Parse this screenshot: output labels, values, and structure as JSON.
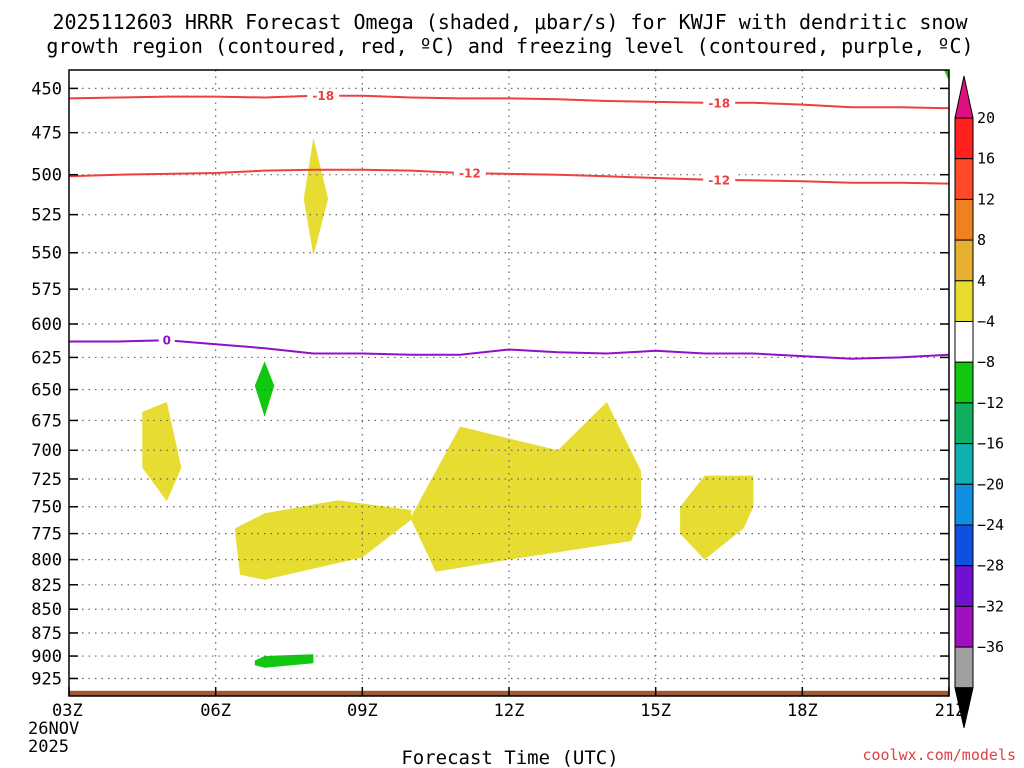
{
  "chart_data": {
    "type": "contour",
    "title_line1": "2025112603 HRRR Forecast Omega (shaded, μbar/s) for KWJF with dendritic snow",
    "title_line2": "growth region (contoured, red, ºC) and freezing level (contoured, purple, ºC)",
    "xlabel": "Forecast Time (UTC)",
    "x_ticks": [
      "03Z",
      "06Z",
      "09Z",
      "12Z",
      "15Z",
      "18Z",
      "21Z"
    ],
    "x_ticks_hours": [
      3,
      6,
      9,
      12,
      15,
      18,
      21
    ],
    "x_date_line1": "26NOV",
    "x_date_line2": "2025",
    "xlim": [
      3,
      21
    ],
    "y_ticks": [
      450,
      475,
      500,
      525,
      550,
      575,
      600,
      625,
      650,
      675,
      700,
      725,
      750,
      775,
      800,
      825,
      850,
      875,
      900,
      925
    ],
    "y_tick_labels": [
      "450",
      "475",
      "500",
      "525",
      "550",
      "575",
      "600",
      "625",
      "650",
      "675",
      "700",
      "725",
      "750",
      "775",
      "800",
      "825",
      "850",
      "875",
      "900",
      "925"
    ],
    "ylim": [
      440,
      945
    ],
    "y_scale": "log-pressure (inverted)",
    "grid": true,
    "colorbar": {
      "labels": [
        "20",
        "16",
        "12",
        "8",
        "4",
        "−4",
        "−8",
        "−12",
        "−16",
        "−20",
        "−24",
        "−28",
        "−32",
        "−36"
      ],
      "values": [
        20,
        16,
        12,
        8,
        4,
        -4,
        -8,
        -12,
        -16,
        -20,
        -24,
        -28,
        -32,
        -36
      ],
      "colors": [
        "#ff2020",
        "#ff4a2a",
        "#f08020",
        "#e8b030",
        "#e8dc30",
        "#ffffff",
        "#10c810",
        "#10b060",
        "#10b0b0",
        "#1090e0",
        "#1050e0",
        "#7010d0",
        "#a010c0",
        "#a0a0a0"
      ],
      "top_arrow_color": "#e01080",
      "bottom_arrow_color": "#000000"
    },
    "omega_colors": {
      "positive_4_8": "#e6dc32",
      "negative_4_8": "#10c810"
    },
    "contours": [
      {
        "label": "-18",
        "color": "#ee4040",
        "x": [
          3,
          4,
          5,
          6,
          7,
          8,
          9,
          10,
          11,
          12,
          13,
          14,
          15,
          16,
          17,
          18,
          19,
          20,
          21
        ],
        "y": [
          455.5,
          455.0,
          454.5,
          454.5,
          455.0,
          454.0,
          454.0,
          455.0,
          455.5,
          455.5,
          456.0,
          457.0,
          457.5,
          458.0,
          458.0,
          459.0,
          460.5,
          460.5,
          461.0
        ]
      },
      {
        "label": "-12",
        "color": "#ee4040",
        "x": [
          3,
          4,
          5,
          6,
          7,
          8,
          9,
          10,
          11,
          12,
          13,
          14,
          15,
          16,
          17,
          18,
          19,
          20,
          21
        ],
        "y": [
          501.0,
          500.0,
          499.5,
          499.0,
          497.5,
          497.0,
          497.0,
          497.5,
          499.0,
          499.5,
          500.0,
          501.0,
          502.0,
          503.0,
          503.5,
          504.0,
          505.0,
          505.0,
          505.5
        ]
      },
      {
        "label": "0",
        "color": "#9010c8",
        "x": [
          3,
          4,
          5,
          6,
          7,
          8,
          9,
          10,
          11,
          12,
          13,
          14,
          15,
          16,
          17,
          18,
          19,
          20,
          21
        ],
        "y": [
          613,
          613,
          612,
          615,
          618,
          622,
          622,
          623,
          623,
          619,
          621,
          622,
          620,
          622,
          622,
          624,
          626,
          625,
          623
        ]
      }
    ],
    "shaded_regions": [
      {
        "sign": "positive",
        "x": [
          8.0,
          8.3,
          8.0,
          7.8
        ],
        "y": [
          478,
          515,
          552,
          515
        ]
      },
      {
        "sign": "positive",
        "x": [
          4.5,
          5.0,
          5.3,
          5.0,
          4.5
        ],
        "y": [
          668,
          660,
          715,
          745,
          715
        ]
      },
      {
        "sign": "positive",
        "x": [
          6.4,
          7.0,
          8.5,
          10.0,
          10.0,
          9.0,
          7.0,
          6.5,
          6.4
        ],
        "y": [
          770,
          756,
          744,
          753,
          762,
          798,
          820,
          815,
          775
        ]
      },
      {
        "sign": "positive",
        "x": [
          10.0,
          11.0,
          12.0,
          13.0,
          14.0,
          14.7,
          14.7,
          14.5,
          12.0,
          10.5,
          10.0
        ],
        "y": [
          759,
          680,
          690,
          700,
          660,
          718,
          760,
          782,
          800,
          812,
          762
        ]
      },
      {
        "sign": "positive",
        "x": [
          15.5,
          16.0,
          17.0,
          17.0,
          16.8,
          16.0,
          15.5
        ],
        "y": [
          750,
          722,
          722,
          750,
          770,
          800,
          775
        ]
      },
      {
        "sign": "negative",
        "x": [
          7.0,
          7.2,
          7.0,
          6.8
        ],
        "y": [
          628,
          647,
          672,
          647
        ]
      },
      {
        "sign": "negative",
        "x": [
          6.8,
          7.0,
          8.0,
          8.0,
          7.0,
          6.8
        ],
        "y": [
          905,
          900,
          898,
          908,
          913,
          910
        ]
      },
      {
        "sign": "negative",
        "x": [
          20.9,
          21.0,
          21.0
        ],
        "y": [
          440,
          440,
          446
        ]
      }
    ],
    "terrain": {
      "color": "#a05a32",
      "top_pressure": 939
    }
  },
  "credit": "coolwx.com/models",
  "credit_color": "#e04040"
}
